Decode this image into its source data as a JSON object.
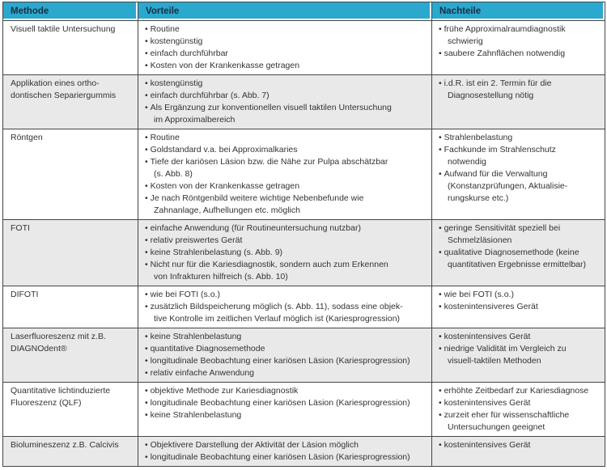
{
  "colors": {
    "header_bg": "#2ba8ce",
    "header_text": "#1a2e42",
    "body_text": "#333333",
    "border": "#454545",
    "row_alt_bg": "#e9e9e9",
    "row_bg": "#ffffff"
  },
  "icons": {
    "bullet_glyph": "•"
  },
  "table": {
    "columns": [
      {
        "key": "methode",
        "label": "Methode"
      },
      {
        "key": "vorteile",
        "label": "Vorteile"
      },
      {
        "key": "nachteile",
        "label": "Nachteile"
      }
    ],
    "rows": [
      {
        "methode": "Visuell taktile Untersuchung",
        "shaded": false,
        "vorteile": [
          "Routine",
          "kostengünstig",
          "einfach durchführbar",
          "Kosten von der Krankenkasse getragen"
        ],
        "nachteile": [
          "frühe Approximalraumdiagnostik\nschwierig",
          "saubere Zahnflächen notwendig"
        ]
      },
      {
        "methode": "Applikation eines ortho-\ndontischen Separiergummis",
        "shaded": true,
        "vorteile": [
          "kostengünstig",
          "einfach durchführbar (s. Abb. 7)",
          "Als Ergänzung zur konventionellen visuell taktilen Untersuchung\nim Approximalbereich"
        ],
        "nachteile": [
          "i.d.R. ist ein 2. Termin für die\nDiagnosestellung nötig"
        ]
      },
      {
        "methode": "Röntgen",
        "shaded": false,
        "vorteile": [
          "Routine",
          "Goldstandard v.a. bei Approximalkaries",
          "Tiefe der kariösen Läsion bzw. die Nähe zur Pulpa abschätzbar\n(s. Abb. 8)",
          "Kosten von der Krankenkasse getragen",
          "Je nach Röntgenbild weitere wichtige Nebenbefunde wie\nZahnanlage, Aufhellungen etc. möglich"
        ],
        "nachteile": [
          "Strahlenbelastung",
          "Fachkunde im Strahlenschutz\nnotwendig",
          "Aufwand für die Verwaltung\n(Konstanzprüfungen, Aktualisie-\nrungskurse etc.)"
        ]
      },
      {
        "methode": "FOTI",
        "shaded": true,
        "vorteile": [
          "einfache Anwendung (für Routineuntersuchung nutzbar)",
          "relativ preiswertes Gerät",
          "keine Strahlenbelastung (s. Abb. 9)",
          "Nicht nur für die Kariesdiagnostik, sondern auch zum Erkennen\nvon Infrakturen hilfreich (s. Abb. 10)"
        ],
        "nachteile": [
          "geringe Sensitivität speziell bei\nSchmelzläsionen",
          "qualitative Diagnosemethode (keine\nquantitativen Ergebnisse ermittelbar)"
        ]
      },
      {
        "methode": "DIFOTI",
        "shaded": false,
        "vorteile": [
          "wie bei FOTI (s.o.)",
          "zusätzlich Bildspeicherung möglich (s. Abb. 11), sodass eine objek-\ntive Kontrolle im zeitlichen Verlauf möglich ist (Kariesprogression)"
        ],
        "nachteile": [
          "wie bei FOTI (s.o.)",
          "kostenintensiveres Gerät"
        ]
      },
      {
        "methode": "Laserfluoreszenz mit z.B.\nDIAGNOdent®",
        "shaded": true,
        "vorteile": [
          "keine Strahlenbelastung",
          "quantitative Diagnosemethode",
          "longitudinale Beobachtung einer kariösen Läsion (Kariesprogression)",
          "relativ einfache Anwendung"
        ],
        "nachteile": [
          "kostenintensives Gerät",
          "niedrige Validität im Vergleich zu\nvisuell-taktilen Methoden"
        ]
      },
      {
        "methode": "Quantitative lichtinduzierte\nFluoreszenz (QLF)",
        "shaded": false,
        "vorteile": [
          "objektive Methode zur Kariesdiagnostik",
          "longitudinale Beobachtung einer kariösen Läsion (Kariesprogression)",
          "keine Strahlenbelastung"
        ],
        "nachteile": [
          "erhöhte Zeitbedarf zur Kariesdiagnose",
          "kostenintensives Gerät",
          "zurzeit eher für wissenschaftliche\nUntersuchungen geeignet"
        ]
      },
      {
        "methode": "Biolumineszenz z.B. Calcivis",
        "shaded": true,
        "vorteile": [
          "Objektivere Darstellung der Aktivität der Läsion möglich",
          "longitudinale Beobachtung einer kariösen Läsion (Kariesprogression)"
        ],
        "nachteile": [
          "kostenintensives Gerät"
        ]
      }
    ]
  }
}
